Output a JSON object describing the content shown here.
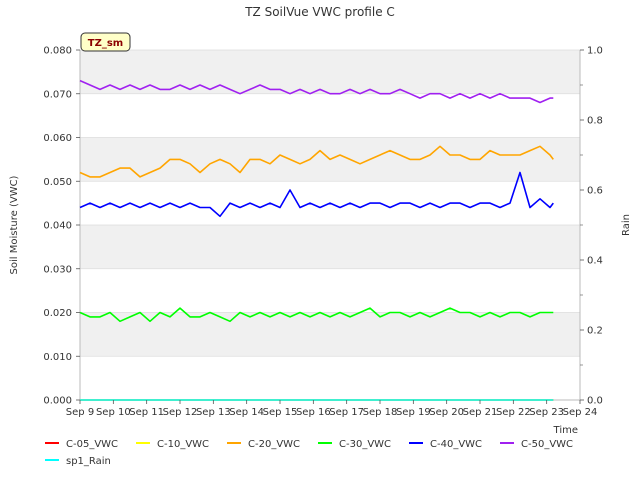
{
  "chart_data": {
    "type": "line",
    "title": "TZ SoilVue VWC profile C",
    "site_badge": "TZ_sm",
    "xlabel": "Time",
    "ylabel": "Soil Moisture (VWC)",
    "y2label": "Rain",
    "ylim": [
      0.0,
      0.08
    ],
    "y2lim": [
      0.0,
      1.0
    ],
    "xlim": [
      0,
      15
    ],
    "x_ticks": [
      "Sep 9",
      "Sep 10",
      "Sep 11",
      "Sep 12",
      "Sep 13",
      "Sep 14",
      "Sep 15",
      "Sep 16",
      "Sep 17",
      "Sep 18",
      "Sep 19",
      "Sep 20",
      "Sep 21",
      "Sep 22",
      "Sep 23",
      "Sep 24"
    ],
    "y_ticks": [
      "0.000",
      "0.010",
      "0.020",
      "0.030",
      "0.040",
      "0.050",
      "0.060",
      "0.070",
      "0.080"
    ],
    "y2_ticks": [
      "0.0",
      "0.2",
      "0.4",
      "0.6",
      "0.8",
      "1.0"
    ],
    "grid": true,
    "legend_position": "bottom",
    "series": [
      {
        "name": "C-05_VWC",
        "color": "#ff0000",
        "axis": "left",
        "x": [
          0,
          14.2
        ],
        "values": [
          0.0,
          0.0
        ]
      },
      {
        "name": "C-10_VWC",
        "color": "#ffff00",
        "axis": "left",
        "x": [
          0,
          14.2
        ],
        "values": [
          0.0,
          0.0
        ]
      },
      {
        "name": "C-20_VWC",
        "color": "#ffa500",
        "axis": "left",
        "x": [
          0,
          0.3,
          0.6,
          0.9,
          1.2,
          1.5,
          1.8,
          2.1,
          2.4,
          2.7,
          3.0,
          3.3,
          3.6,
          3.9,
          4.2,
          4.5,
          4.8,
          5.1,
          5.4,
          5.7,
          6.0,
          6.3,
          6.6,
          6.9,
          7.2,
          7.5,
          7.8,
          8.1,
          8.4,
          8.7,
          9.0,
          9.3,
          9.6,
          9.9,
          10.2,
          10.5,
          10.8,
          11.1,
          11.4,
          11.7,
          12.0,
          12.3,
          12.6,
          12.9,
          13.2,
          13.5,
          13.8,
          14.1,
          14.2
        ],
        "values": [
          0.052,
          0.051,
          0.051,
          0.052,
          0.053,
          0.053,
          0.051,
          0.052,
          0.053,
          0.055,
          0.055,
          0.054,
          0.052,
          0.054,
          0.055,
          0.054,
          0.052,
          0.055,
          0.055,
          0.054,
          0.056,
          0.055,
          0.054,
          0.055,
          0.057,
          0.055,
          0.056,
          0.055,
          0.054,
          0.055,
          0.056,
          0.057,
          0.056,
          0.055,
          0.055,
          0.056,
          0.058,
          0.056,
          0.056,
          0.055,
          0.055,
          0.057,
          0.056,
          0.056,
          0.056,
          0.057,
          0.058,
          0.056,
          0.055
        ]
      },
      {
        "name": "C-30_VWC",
        "color": "#00ff00",
        "axis": "left",
        "x": [
          0,
          0.3,
          0.6,
          0.9,
          1.2,
          1.5,
          1.8,
          2.1,
          2.4,
          2.7,
          3.0,
          3.3,
          3.6,
          3.9,
          4.2,
          4.5,
          4.8,
          5.1,
          5.4,
          5.7,
          6.0,
          6.3,
          6.6,
          6.9,
          7.2,
          7.5,
          7.8,
          8.1,
          8.4,
          8.7,
          9.0,
          9.3,
          9.6,
          9.9,
          10.2,
          10.5,
          10.8,
          11.1,
          11.4,
          11.7,
          12.0,
          12.3,
          12.6,
          12.9,
          13.2,
          13.5,
          13.8,
          14.1,
          14.2
        ],
        "values": [
          0.02,
          0.019,
          0.019,
          0.02,
          0.018,
          0.019,
          0.02,
          0.018,
          0.02,
          0.019,
          0.021,
          0.019,
          0.019,
          0.02,
          0.019,
          0.018,
          0.02,
          0.019,
          0.02,
          0.019,
          0.02,
          0.019,
          0.02,
          0.019,
          0.02,
          0.019,
          0.02,
          0.019,
          0.02,
          0.021,
          0.019,
          0.02,
          0.02,
          0.019,
          0.02,
          0.019,
          0.02,
          0.021,
          0.02,
          0.02,
          0.019,
          0.02,
          0.019,
          0.02,
          0.02,
          0.019,
          0.02,
          0.02,
          0.02
        ]
      },
      {
        "name": "C-40_VWC",
        "color": "#0000ff",
        "axis": "left",
        "x": [
          0,
          0.3,
          0.6,
          0.9,
          1.2,
          1.5,
          1.8,
          2.1,
          2.4,
          2.7,
          3.0,
          3.3,
          3.6,
          3.9,
          4.2,
          4.5,
          4.8,
          5.1,
          5.4,
          5.7,
          6.0,
          6.3,
          6.6,
          6.9,
          7.2,
          7.5,
          7.8,
          8.1,
          8.4,
          8.7,
          9.0,
          9.3,
          9.6,
          9.9,
          10.2,
          10.5,
          10.8,
          11.1,
          11.4,
          11.7,
          12.0,
          12.3,
          12.6,
          12.9,
          13.2,
          13.5,
          13.8,
          14.1,
          14.2
        ],
        "values": [
          0.044,
          0.045,
          0.044,
          0.045,
          0.044,
          0.045,
          0.044,
          0.045,
          0.044,
          0.045,
          0.044,
          0.045,
          0.044,
          0.044,
          0.042,
          0.045,
          0.044,
          0.045,
          0.044,
          0.045,
          0.044,
          0.048,
          0.044,
          0.045,
          0.044,
          0.045,
          0.044,
          0.045,
          0.044,
          0.045,
          0.045,
          0.044,
          0.045,
          0.045,
          0.044,
          0.045,
          0.044,
          0.045,
          0.045,
          0.044,
          0.045,
          0.045,
          0.044,
          0.045,
          0.052,
          0.044,
          0.046,
          0.044,
          0.045
        ]
      },
      {
        "name": "C-50_VWC",
        "color": "#a020f0",
        "axis": "left",
        "x": [
          0,
          0.3,
          0.6,
          0.9,
          1.2,
          1.5,
          1.8,
          2.1,
          2.4,
          2.7,
          3.0,
          3.3,
          3.6,
          3.9,
          4.2,
          4.5,
          4.8,
          5.1,
          5.4,
          5.7,
          6.0,
          6.3,
          6.6,
          6.9,
          7.2,
          7.5,
          7.8,
          8.1,
          8.4,
          8.7,
          9.0,
          9.3,
          9.6,
          9.9,
          10.2,
          10.5,
          10.8,
          11.1,
          11.4,
          11.7,
          12.0,
          12.3,
          12.6,
          12.9,
          13.2,
          13.5,
          13.8,
          14.1,
          14.2
        ],
        "values": [
          0.073,
          0.072,
          0.071,
          0.072,
          0.071,
          0.072,
          0.071,
          0.072,
          0.071,
          0.071,
          0.072,
          0.071,
          0.072,
          0.071,
          0.072,
          0.071,
          0.07,
          0.071,
          0.072,
          0.071,
          0.071,
          0.07,
          0.071,
          0.07,
          0.071,
          0.07,
          0.07,
          0.071,
          0.07,
          0.071,
          0.07,
          0.07,
          0.071,
          0.07,
          0.069,
          0.07,
          0.07,
          0.069,
          0.07,
          0.069,
          0.07,
          0.069,
          0.07,
          0.069,
          0.069,
          0.069,
          0.068,
          0.069,
          0.069
        ]
      },
      {
        "name": "sp1_Rain",
        "color": "#00ffff",
        "axis": "right",
        "x": [
          0,
          14.2
        ],
        "values": [
          0.0,
          0.0
        ]
      }
    ]
  }
}
